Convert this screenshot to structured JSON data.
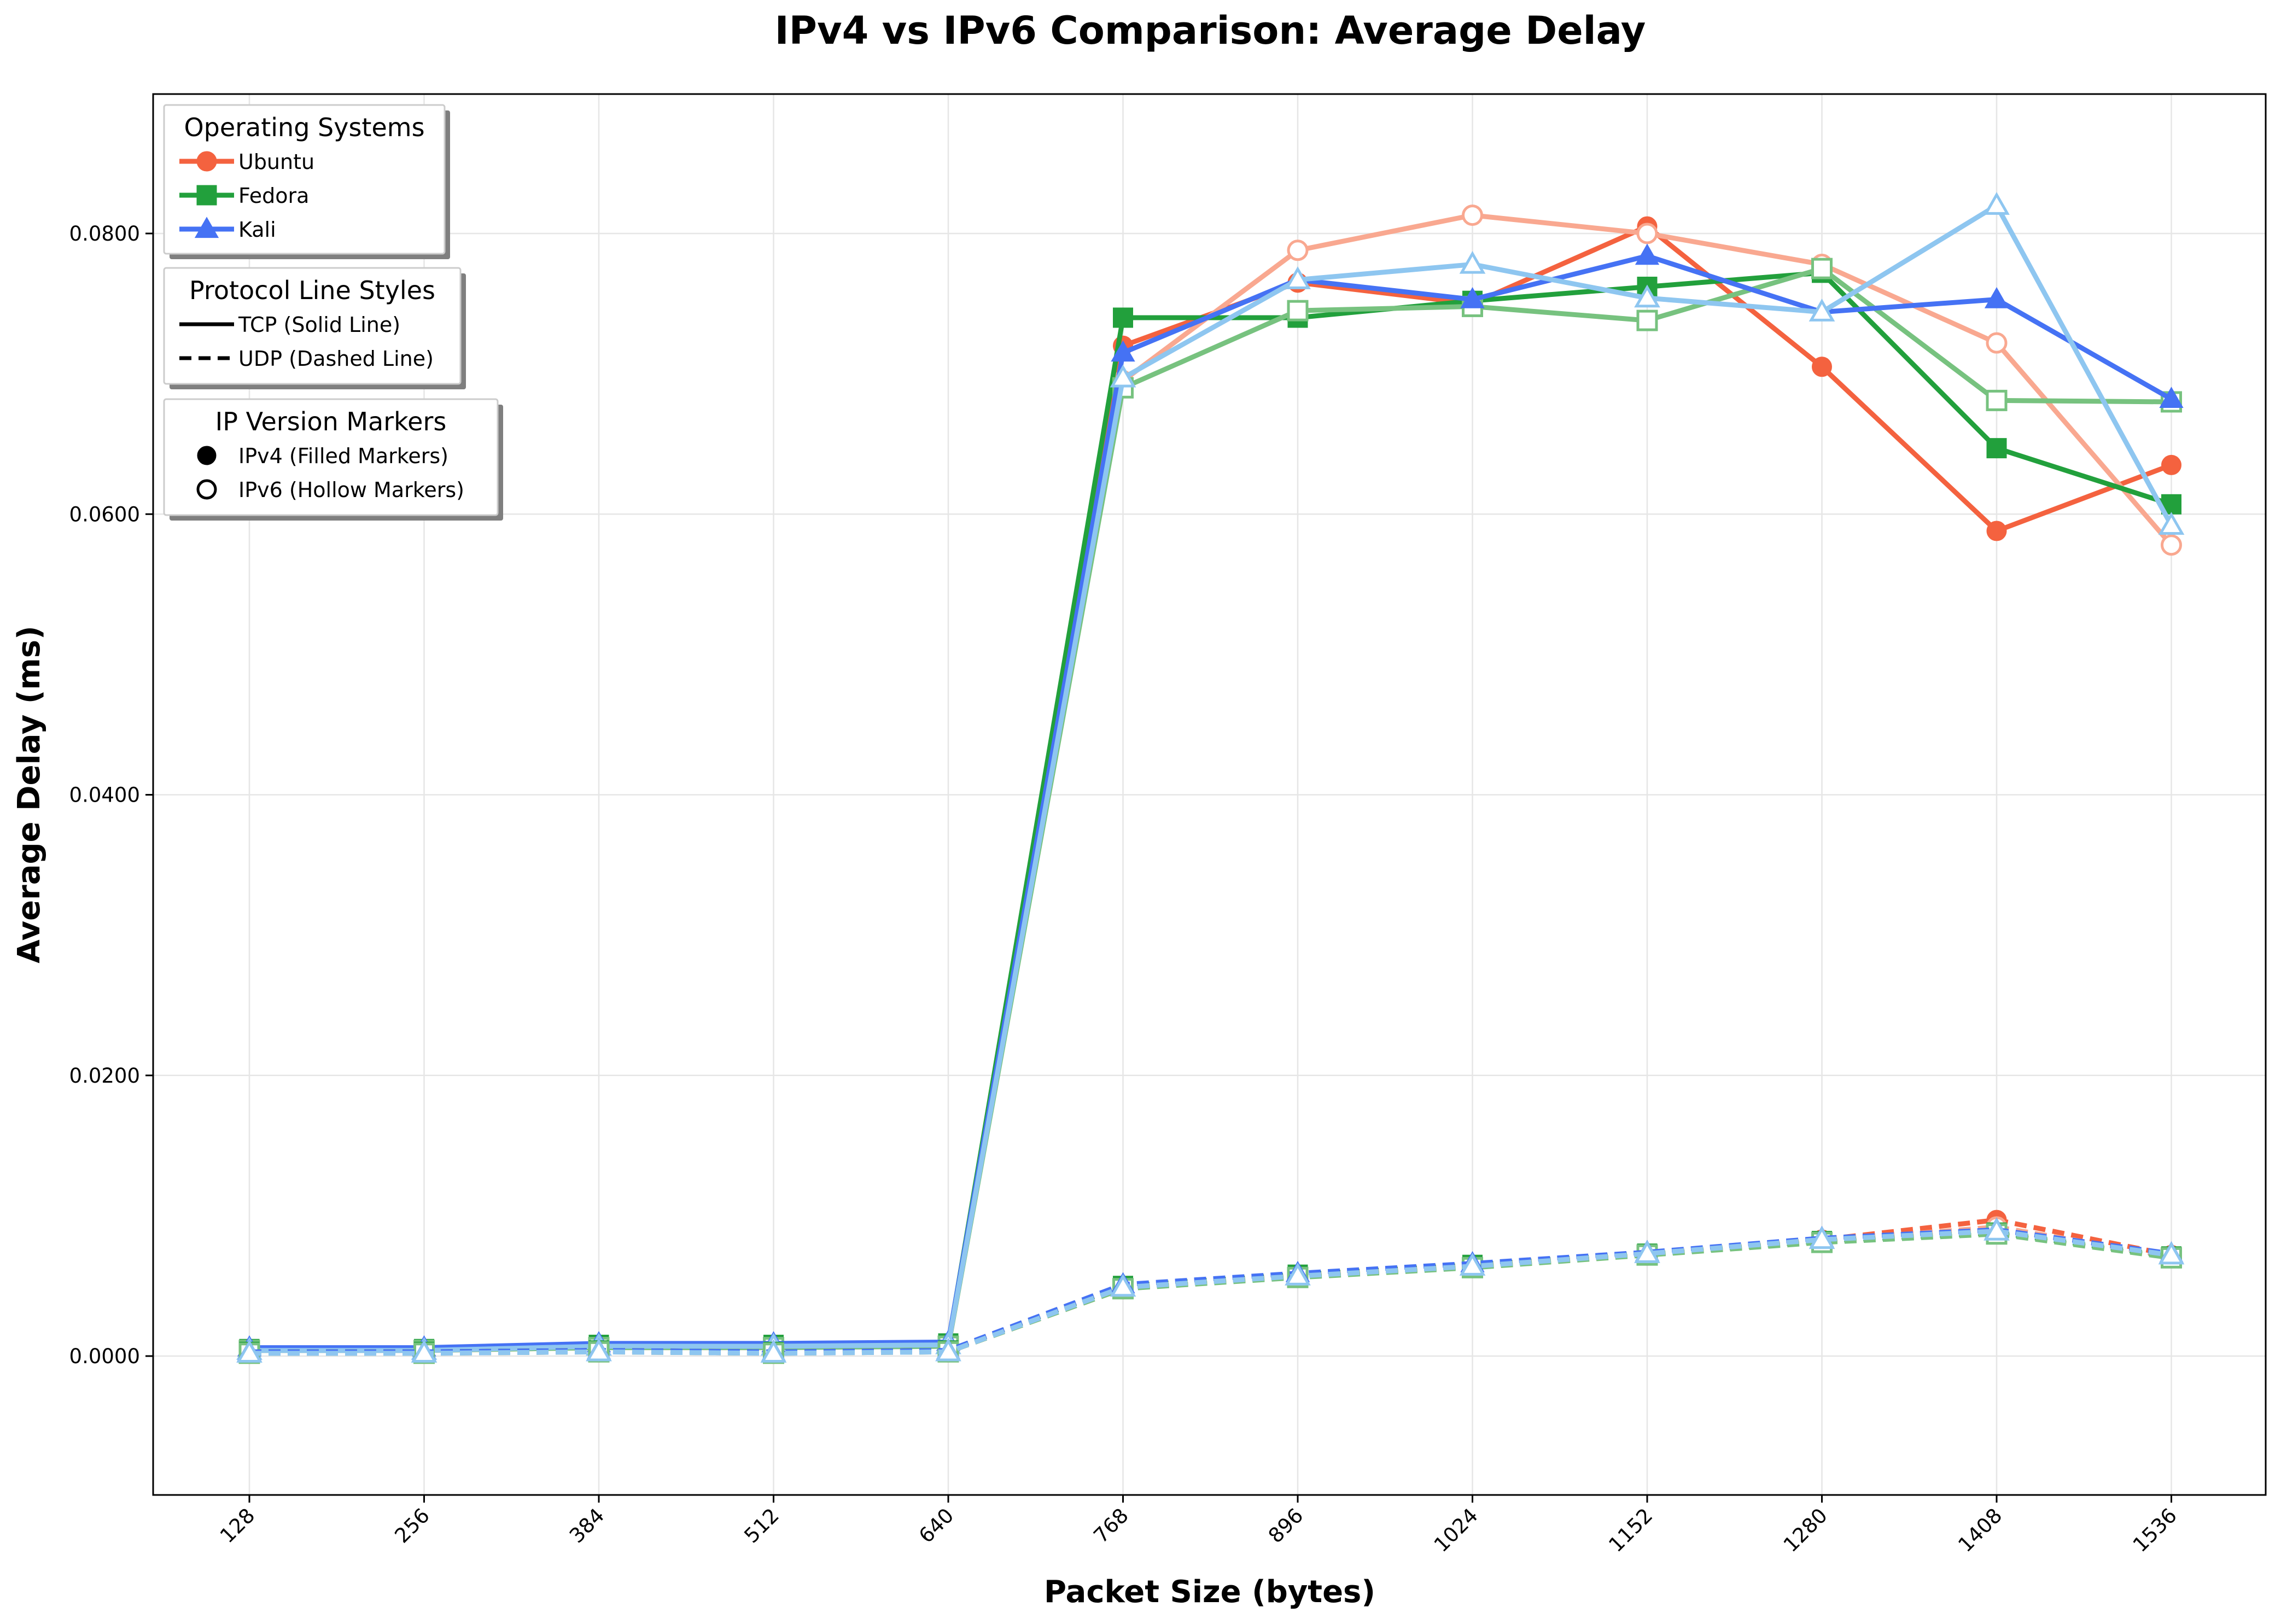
{
  "chart_data": {
    "type": "line",
    "title": "IPv4 vs IPv6 Comparison: Average Delay",
    "xlabel": "Packet Size (bytes)",
    "ylabel": "Average Delay (ms)",
    "categories": [
      "128",
      "256",
      "384",
      "512",
      "640",
      "768",
      "896",
      "1024",
      "1152",
      "1280",
      "1408",
      "1536"
    ],
    "ylim": [
      -0.01,
      0.09
    ],
    "yticks": [
      0.0,
      0.02,
      0.04,
      0.06,
      0.08
    ],
    "ytick_labels": [
      "0.0000",
      "0.0200",
      "0.0400",
      "0.0600",
      "0.0800"
    ],
    "grid": true,
    "legends": [
      {
        "title": "Operating Systems",
        "placement": "top-left",
        "entries": [
          {
            "label": "Ubuntu",
            "color": "#f4623f",
            "marker": "circle"
          },
          {
            "label": "Fedora",
            "color": "#22a03c",
            "marker": "square"
          },
          {
            "label": "Kali",
            "color": "#4572f4",
            "marker": "triangle"
          }
        ]
      },
      {
        "title": "Protocol Line Styles",
        "placement": "top-left",
        "entries": [
          {
            "label": "TCP (Solid Line)",
            "style": "solid"
          },
          {
            "label": "UDP (Dashed Line)",
            "style": "dashed"
          }
        ]
      },
      {
        "title": "IP Version Markers",
        "placement": "top-left",
        "entries": [
          {
            "label": "IPv4 (Filled Markers)",
            "marker": "filled"
          },
          {
            "label": "IPv6 (Hollow Markers)",
            "marker": "hollow"
          }
        ]
      }
    ],
    "series": [
      {
        "os": "Ubuntu",
        "protocol": "TCP",
        "ip": "IPv4",
        "color": "#f4623f",
        "marker": "circle",
        "values": [
          0.0005,
          0.0005,
          0.0008,
          0.0008,
          0.0009,
          0.072,
          0.0765,
          0.075,
          0.0805,
          0.0705,
          0.0588,
          0.0635
        ]
      },
      {
        "os": "Ubuntu",
        "protocol": "TCP",
        "ip": "IPv6",
        "color": "#f9a890",
        "marker": "circle",
        "values": [
          0.0004,
          0.0004,
          0.0006,
          0.0006,
          0.0007,
          0.0695,
          0.0788,
          0.0813,
          0.08,
          0.0778,
          0.0722,
          0.0578
        ]
      },
      {
        "os": "Fedora",
        "protocol": "TCP",
        "ip": "IPv4",
        "color": "#22a03c",
        "marker": "square",
        "values": [
          0.0005,
          0.0005,
          0.0008,
          0.0008,
          0.0009,
          0.074,
          0.074,
          0.0752,
          0.0762,
          0.0772,
          0.0647,
          0.0607
        ]
      },
      {
        "os": "Fedora",
        "protocol": "TCP",
        "ip": "IPv6",
        "color": "#77c27f",
        "marker": "square",
        "values": [
          0.0004,
          0.0004,
          0.0006,
          0.0006,
          0.0007,
          0.069,
          0.0745,
          0.0748,
          0.0738,
          0.0775,
          0.0681,
          0.068
        ]
      },
      {
        "os": "Kali",
        "protocol": "TCP",
        "ip": "IPv4",
        "color": "#4572f4",
        "marker": "triangle",
        "values": [
          0.0006,
          0.0006,
          0.0009,
          0.0009,
          0.001,
          0.0715,
          0.0767,
          0.0753,
          0.0784,
          0.0744,
          0.0753,
          0.0682
        ]
      },
      {
        "os": "Kali",
        "protocol": "TCP",
        "ip": "IPv6",
        "color": "#8ec6f0",
        "marker": "triangle",
        "values": [
          0.0004,
          0.0004,
          0.0007,
          0.0007,
          0.0008,
          0.0697,
          0.0767,
          0.0778,
          0.0754,
          0.0744,
          0.082,
          0.0592
        ]
      },
      {
        "os": "Ubuntu",
        "protocol": "UDP",
        "ip": "IPv4",
        "color": "#f4623f",
        "marker": "circle",
        "values": [
          0.0003,
          0.0003,
          0.0004,
          0.0003,
          0.0004,
          0.005,
          0.0058,
          0.0065,
          0.0073,
          0.0083,
          0.0097,
          0.0072
        ]
      },
      {
        "os": "Ubuntu",
        "protocol": "UDP",
        "ip": "IPv6",
        "color": "#f9a890",
        "marker": "circle",
        "values": [
          0.0002,
          0.0002,
          0.0003,
          0.0002,
          0.0003,
          0.0048,
          0.0057,
          0.0064,
          0.0072,
          0.0082,
          0.0092,
          0.0071
        ]
      },
      {
        "os": "Fedora",
        "protocol": "UDP",
        "ip": "IPv4",
        "color": "#22a03c",
        "marker": "square",
        "values": [
          0.0003,
          0.0003,
          0.0004,
          0.0003,
          0.0004,
          0.005,
          0.0058,
          0.0065,
          0.0073,
          0.0082,
          0.0088,
          0.0071
        ]
      },
      {
        "os": "Fedora",
        "protocol": "UDP",
        "ip": "IPv6",
        "color": "#77c27f",
        "marker": "square",
        "values": [
          0.0002,
          0.0002,
          0.0003,
          0.0002,
          0.0003,
          0.0048,
          0.0056,
          0.0063,
          0.0072,
          0.0081,
          0.0087,
          0.007
        ]
      },
      {
        "os": "Kali",
        "protocol": "UDP",
        "ip": "IPv4",
        "color": "#4572f4",
        "marker": "triangle",
        "values": [
          0.0003,
          0.0003,
          0.0004,
          0.0003,
          0.0004,
          0.0051,
          0.0059,
          0.0066,
          0.0074,
          0.0084,
          0.009,
          0.0073
        ]
      },
      {
        "os": "Kali",
        "protocol": "UDP",
        "ip": "IPv6",
        "color": "#8ec6f0",
        "marker": "triangle",
        "values": [
          0.0002,
          0.0002,
          0.0003,
          0.0002,
          0.0003,
          0.0049,
          0.0057,
          0.0064,
          0.0073,
          0.0083,
          0.0089,
          0.0072
        ]
      }
    ]
  }
}
